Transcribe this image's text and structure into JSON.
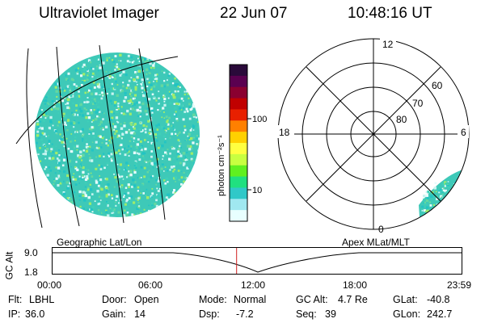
{
  "header": {
    "instrument": "Ultraviolet Imager",
    "date": "22 Jun 07",
    "time": "10:48:16 UT"
  },
  "images": {
    "left_label": "Geographic Lat/Lon",
    "right_label": "Apex MLat/MLT",
    "fill_color": "#3ec9b8",
    "noise_colors": [
      "#3fd0b8",
      "#64d8a0",
      "#a0ec6a",
      "#c8f4f0",
      "#e6fbfb",
      "#22c4c4"
    ]
  },
  "colorbar": {
    "label": "photon cm⁻²s⁻¹",
    "tick_100": "100",
    "tick_10": "10",
    "colors": [
      "#2a0a3a",
      "#5a0050",
      "#8a0030",
      "#c00000",
      "#e82000",
      "#ff8000",
      "#ffd000",
      "#ffff40",
      "#c8ff40",
      "#60f020",
      "#20e080",
      "#30c8c8",
      "#a0e8f0",
      "#e8ffff"
    ]
  },
  "polar": {
    "mlt_top": "12",
    "mlt_left": "18",
    "mlt_right": "6",
    "mlt_bottom": "0",
    "lat_60": "60",
    "lat_70": "70",
    "lat_80": "80"
  },
  "altitude_plot": {
    "ylabel": "GC Alt",
    "y_top": "9.0",
    "y_bottom": "1.8",
    "x_ticks": [
      "00:00",
      "06:00",
      "12:00",
      "18:00",
      "23:59"
    ],
    "current_time_fraction": 0.4502,
    "marker_color": "#d02020"
  },
  "info": {
    "flt_label": "Flt:",
    "flt_value": "LBHL",
    "door_label": "Door:",
    "door_value": "Open",
    "mode_label": "Mode:",
    "mode_value": "Normal",
    "gcalt_label": "GC Alt:",
    "gcalt_value": "4.7 Re",
    "glat_label": "GLat:",
    "glat_value": "-40.8",
    "ip_label": "IP:",
    "ip_value": "36.0",
    "gain_label": "Gain:",
    "gain_value": "14",
    "dsp_label": "Dsp:",
    "dsp_value": "-7.2",
    "seq_label": "Seq:",
    "seq_value": "39",
    "glon_label": "GLon:",
    "glon_value": "242.7"
  }
}
